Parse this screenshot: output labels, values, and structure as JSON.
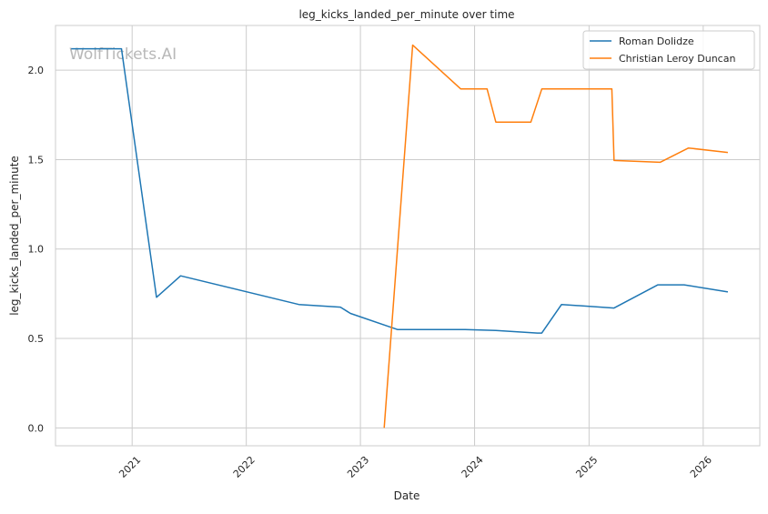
{
  "chart_data": {
    "type": "line",
    "title": "leg_kicks_landed_per_minute over time",
    "xlabel": "Date",
    "ylabel": "leg_kicks_landed_per_minute",
    "xlim": [
      "2020-05-01",
      "2026-07-01"
    ],
    "ylim": [
      -0.1,
      2.25
    ],
    "x_ticks": [
      "2021-01-01",
      "2022-01-01",
      "2023-01-01",
      "2024-01-01",
      "2025-01-01",
      "2026-01-01"
    ],
    "x_tick_labels": [
      "2021",
      "2022",
      "2023",
      "2024",
      "2025",
      "2026"
    ],
    "y_ticks": [
      0.0,
      0.5,
      1.0,
      1.5,
      2.0
    ],
    "y_tick_labels": [
      "0.0",
      "0.5",
      "1.0",
      "1.5",
      "2.0"
    ],
    "grid": true,
    "legend_position": "top-right",
    "watermark": "WolfTickets.AI",
    "colors": {
      "Roman Dolidze": "#1f77b4",
      "Christian Leroy Duncan": "#ff7f0e"
    },
    "series": [
      {
        "name": "Roman Dolidze",
        "color": "#1f77b4",
        "x": [
          "2020-06-20",
          "2020-11-28",
          "2021-03-20",
          "2021-06-05",
          "2022-06-18",
          "2022-10-29",
          "2022-11-30",
          "2023-04-29",
          "2023-12-02",
          "2024-03-09",
          "2024-07-20",
          "2024-08-03",
          "2024-10-05",
          "2025-03-22",
          "2025-08-09",
          "2025-11-01",
          "2026-03-21"
        ],
        "values": [
          2.12,
          2.12,
          0.73,
          0.85,
          0.69,
          0.675,
          0.64,
          0.55,
          0.55,
          0.545,
          0.53,
          0.53,
          0.69,
          0.67,
          0.8,
          0.8,
          0.76
        ]
      },
      {
        "name": "Christian Leroy Duncan",
        "color": "#ff7f0e",
        "x": [
          "2023-03-18",
          "2023-06-17",
          "2023-11-18",
          "2024-02-10",
          "2024-03-09",
          "2024-06-29",
          "2024-08-03",
          "2025-03-15",
          "2025-03-22",
          "2025-08-16",
          "2025-11-15",
          "2026-03-21"
        ],
        "values": [
          0.0,
          2.14,
          1.895,
          1.895,
          1.71,
          1.71,
          1.895,
          1.895,
          1.495,
          1.485,
          1.565,
          1.54
        ]
      }
    ]
  }
}
